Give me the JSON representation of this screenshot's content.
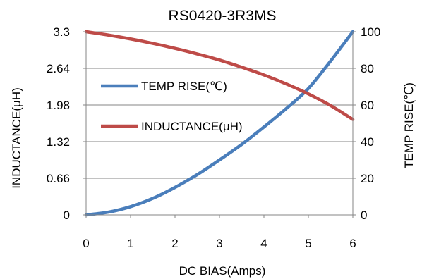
{
  "chart_data": {
    "type": "line",
    "title": "RS0420-3R3MS",
    "xlabel": "DC  BIAS(Amps)",
    "ylabel_left": "INDUCTANCE(μH)",
    "ylabel_right": "TEMP RISE(℃)",
    "x_ticks": [
      "0",
      "1",
      "2",
      "3",
      "4",
      "5",
      "6"
    ],
    "y_left_ticks": [
      "0",
      "0.66",
      "1.32",
      "1.98",
      "2.64",
      "3.3"
    ],
    "y_right_ticks": [
      "0",
      "20",
      "40",
      "60",
      "80",
      "100"
    ],
    "xlim": [
      0,
      6
    ],
    "ylim_left": [
      0,
      3.3
    ],
    "ylim_right": [
      0,
      100
    ],
    "grid": "horizontal",
    "legend_position": "inside-left",
    "series": [
      {
        "name": "TEMP RISE(℃)",
        "axis": "right",
        "color": "#4a7ebb",
        "x": [
          0,
          0.5,
          1,
          1.5,
          2,
          2.5,
          3,
          3.5,
          4,
          4.5,
          5,
          5.5,
          6
        ],
        "y": [
          0,
          1.5,
          4.5,
          9,
          15,
          22,
          30,
          38.5,
          48,
          58,
          69,
          84,
          100
        ]
      },
      {
        "name": "INDUCTANCE(μH)",
        "axis": "left",
        "color": "#be4b48",
        "x": [
          0,
          0.5,
          1,
          1.5,
          2,
          2.5,
          3,
          3.5,
          4,
          4.5,
          5,
          5.5,
          6
        ],
        "y": [
          3.3,
          3.24,
          3.17,
          3.09,
          3.0,
          2.9,
          2.79,
          2.66,
          2.52,
          2.36,
          2.18,
          1.97,
          1.72
        ]
      }
    ]
  }
}
